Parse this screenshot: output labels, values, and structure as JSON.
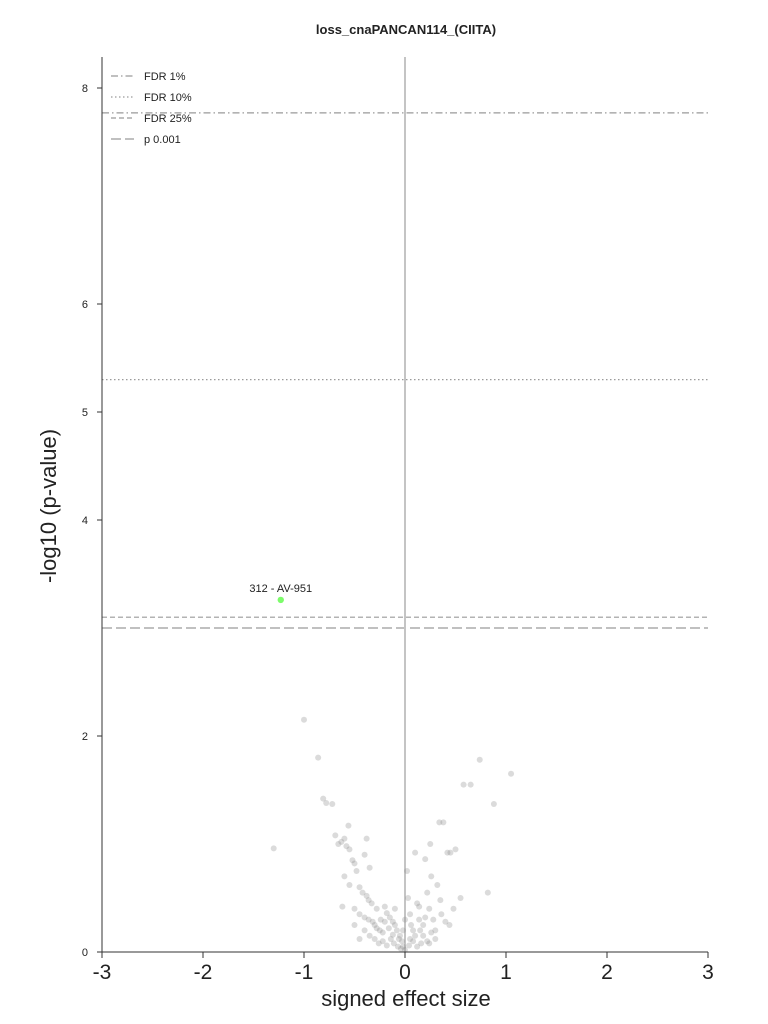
{
  "chart_data": {
    "type": "scatter",
    "title": "loss_cnaPANCAN114_(CIITA)",
    "xlabel": "signed effect size",
    "ylabel": "-log10 (p-value)",
    "xlim": [
      -3,
      3
    ],
    "ylim": [
      0,
      8.3
    ],
    "xticks": [
      "-3",
      "-2",
      "-1",
      "0",
      "1",
      "2",
      "3"
    ],
    "yticks": [
      "0",
      "2",
      "4",
      "5",
      "6",
      "8"
    ],
    "grid": false,
    "legend_position": "top-left",
    "thresholds": [
      {
        "name": "FDR 1%",
        "y": 7.77,
        "style": "dashdot"
      },
      {
        "name": "FDR 10%",
        "y": 5.3,
        "style": "dotted"
      },
      {
        "name": "FDR 25%",
        "y": 3.1,
        "style": "dashed"
      },
      {
        "name": "p 0.001",
        "y": 3.0,
        "style": "longdash"
      }
    ],
    "highlight": {
      "label": "312 - AV-951",
      "x": -1.23,
      "y": 3.26,
      "color": "#7cfc6a"
    },
    "points_color": "#888888",
    "points": [
      [
        -1.0,
        2.15
      ],
      [
        -0.86,
        1.8
      ],
      [
        -0.81,
        1.42
      ],
      [
        -0.78,
        1.38
      ],
      [
        -0.72,
        1.37
      ],
      [
        -1.3,
        0.96
      ],
      [
        -0.69,
        1.08
      ],
      [
        -0.56,
        1.17
      ],
      [
        -0.6,
        1.05
      ],
      [
        -0.63,
        1.02
      ],
      [
        -0.66,
        1.0
      ],
      [
        -0.58,
        0.98
      ],
      [
        -0.55,
        0.95
      ],
      [
        -0.52,
        0.85
      ],
      [
        -0.5,
        0.82
      ],
      [
        -0.48,
        0.75
      ],
      [
        -0.38,
        1.05
      ],
      [
        -0.4,
        0.9
      ],
      [
        -0.35,
        0.78
      ],
      [
        -0.6,
        0.7
      ],
      [
        -0.55,
        0.62
      ],
      [
        -0.45,
        0.6
      ],
      [
        -0.42,
        0.55
      ],
      [
        -0.38,
        0.52
      ],
      [
        -0.36,
        0.48
      ],
      [
        -0.62,
        0.42
      ],
      [
        -0.5,
        0.4
      ],
      [
        -0.45,
        0.35
      ],
      [
        -0.4,
        0.32
      ],
      [
        -0.36,
        0.3
      ],
      [
        -0.32,
        0.28
      ],
      [
        -0.3,
        0.25
      ],
      [
        -0.28,
        0.22
      ],
      [
        -0.25,
        0.2
      ],
      [
        -0.22,
        0.18
      ],
      [
        -0.2,
        0.42
      ],
      [
        -0.18,
        0.36
      ],
      [
        -0.15,
        0.32
      ],
      [
        -0.12,
        0.28
      ],
      [
        -0.1,
        0.25
      ],
      [
        -0.08,
        0.2
      ],
      [
        -0.05,
        0.15
      ],
      [
        -0.03,
        0.1
      ],
      [
        -0.02,
        0.05
      ],
      [
        0.0,
        0.02
      ],
      [
        -0.3,
        0.12
      ],
      [
        -0.26,
        0.08
      ],
      [
        -0.22,
        0.1
      ],
      [
        -0.18,
        0.06
      ],
      [
        -0.14,
        0.12
      ],
      [
        -0.11,
        0.08
      ],
      [
        -0.07,
        0.05
      ],
      [
        -0.04,
        0.03
      ],
      [
        -0.35,
        0.15
      ],
      [
        -0.4,
        0.2
      ],
      [
        -0.28,
        0.4
      ],
      [
        -0.24,
        0.3
      ],
      [
        -0.16,
        0.22
      ],
      [
        -0.12,
        0.16
      ],
      [
        -0.06,
        0.12
      ],
      [
        0.02,
        0.75
      ],
      [
        0.03,
        0.5
      ],
      [
        0.05,
        0.35
      ],
      [
        0.06,
        0.25
      ],
      [
        0.08,
        0.2
      ],
      [
        0.1,
        0.92
      ],
      [
        0.12,
        0.45
      ],
      [
        0.14,
        0.3
      ],
      [
        0.15,
        0.2
      ],
      [
        0.18,
        0.15
      ],
      [
        0.2,
        0.86
      ],
      [
        0.22,
        0.55
      ],
      [
        0.24,
        0.4
      ],
      [
        0.26,
        0.7
      ],
      [
        0.28,
        0.3
      ],
      [
        0.25,
        1.0
      ],
      [
        0.32,
        0.62
      ],
      [
        0.35,
        0.48
      ],
      [
        0.34,
        1.2
      ],
      [
        0.38,
        1.2
      ],
      [
        0.42,
        0.92
      ],
      [
        0.45,
        0.92
      ],
      [
        0.5,
        0.95
      ],
      [
        0.55,
        0.5
      ],
      [
        0.48,
        0.4
      ],
      [
        0.58,
        1.55
      ],
      [
        0.65,
        1.55
      ],
      [
        0.74,
        1.78
      ],
      [
        0.88,
        1.37
      ],
      [
        1.05,
        1.65
      ],
      [
        0.82,
        0.55
      ],
      [
        0.3,
        0.12
      ],
      [
        0.22,
        0.1
      ],
      [
        0.16,
        0.08
      ],
      [
        0.12,
        0.05
      ],
      [
        0.08,
        0.1
      ],
      [
        0.04,
        0.06
      ],
      [
        0.18,
        0.25
      ],
      [
        0.26,
        0.18
      ],
      [
        0.3,
        0.2
      ],
      [
        0.1,
        0.15
      ],
      [
        0.2,
        0.32
      ],
      [
        0.36,
        0.35
      ],
      [
        0.4,
        0.28
      ],
      [
        0.44,
        0.25
      ],
      [
        -0.45,
        0.12
      ],
      [
        -0.5,
        0.25
      ],
      [
        -0.33,
        0.45
      ],
      [
        -0.2,
        0.28
      ],
      [
        -0.1,
        0.4
      ],
      [
        0.0,
        0.3
      ],
      [
        0.05,
        0.12
      ],
      [
        -0.02,
        0.2
      ],
      [
        0.14,
        0.42
      ],
      [
        0.24,
        0.08
      ]
    ]
  }
}
